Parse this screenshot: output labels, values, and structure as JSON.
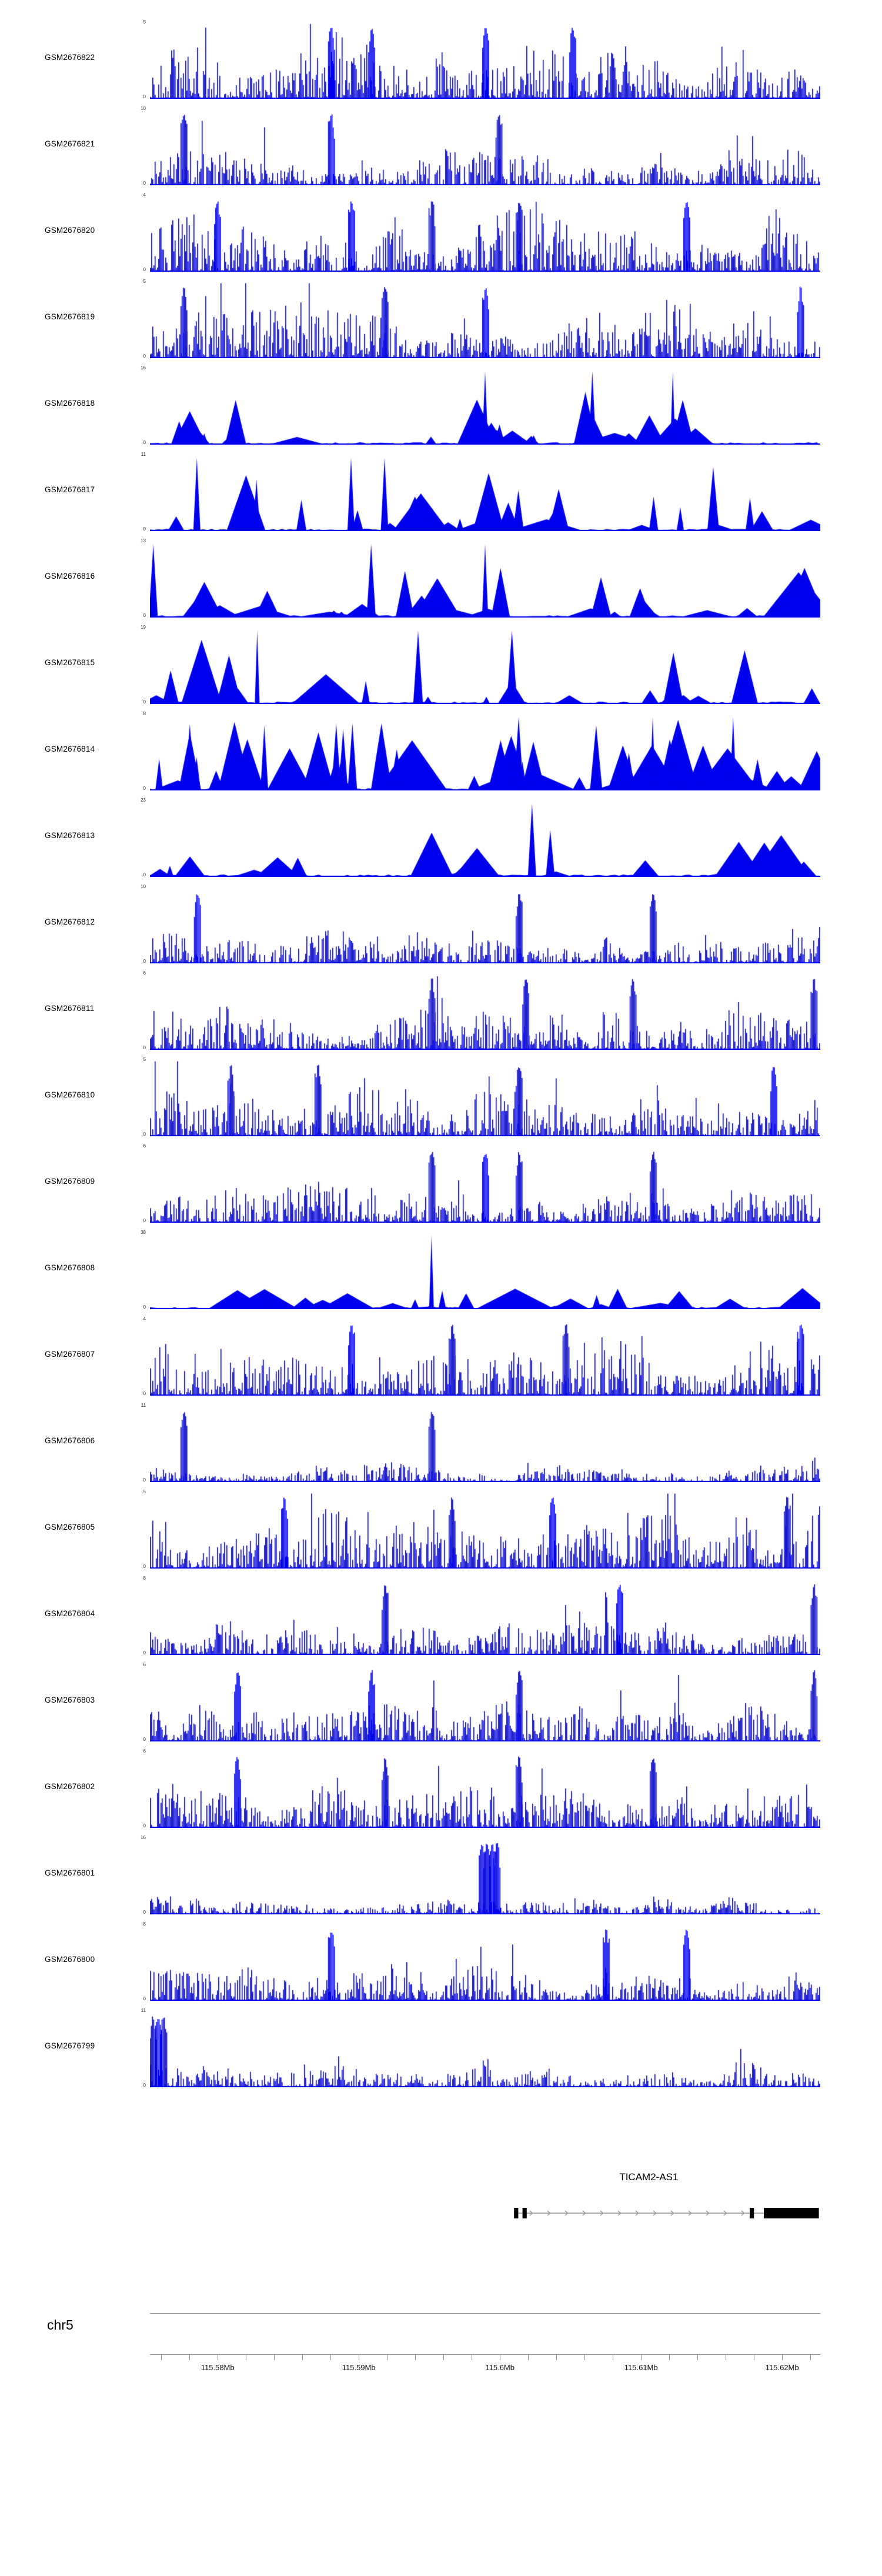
{
  "figure": {
    "background": "#ffffff",
    "signal_color": "#0000EE",
    "axis_color": "#8a8a8a",
    "exon_color": "#000000"
  },
  "chart_data": {
    "type": "area",
    "chart_kind": "genome-coverage-tracks",
    "region": {
      "chromosome": "chr5",
      "start_mb": 115.5752,
      "end_mb": 115.6227,
      "unit": "Mb"
    },
    "tracks": [
      {
        "label": "GSM2676822",
        "ylim": [
          0,
          5
        ],
        "style": "dense",
        "seed": 101,
        "amp": 0.8,
        "peaks": [
          0.27,
          0.33,
          0.5,
          0.63
        ]
      },
      {
        "label": "GSM2676821",
        "ylim": [
          0,
          10
        ],
        "style": "dense",
        "seed": 102,
        "amp": 0.55,
        "peaks": [
          0.05,
          0.27,
          0.52
        ]
      },
      {
        "label": "GSM2676820",
        "ylim": [
          0,
          4
        ],
        "style": "dense",
        "seed": 103,
        "amp": 0.95,
        "peaks": [
          0.1,
          0.3,
          0.42,
          0.55,
          0.8
        ]
      },
      {
        "label": "GSM2676819",
        "ylim": [
          0,
          5
        ],
        "style": "dense",
        "seed": 104,
        "amp": 0.8,
        "peaks": [
          0.05,
          0.35,
          0.5,
          0.97
        ]
      },
      {
        "label": "GSM2676818",
        "ylim": [
          0,
          16
        ],
        "style": "sparse",
        "seed": 105,
        "n": 26,
        "hscale": 0.7,
        "peaks": [
          0.5,
          0.66,
          0.78
        ]
      },
      {
        "label": "GSM2676817",
        "ylim": [
          0,
          11
        ],
        "style": "sparse",
        "seed": 106,
        "n": 30,
        "hscale": 0.8,
        "peaks": [
          0.07,
          0.3,
          0.35
        ]
      },
      {
        "label": "GSM2676816",
        "ylim": [
          0,
          13
        ],
        "style": "sparse",
        "seed": 107,
        "n": 30,
        "hscale": 0.75,
        "peaks": [
          0.005,
          0.33,
          0.5
        ]
      },
      {
        "label": "GSM2676815",
        "ylim": [
          0,
          19
        ],
        "style": "sparse",
        "seed": 108,
        "n": 24,
        "hscale": 0.8,
        "peaks": [
          0.16,
          0.4,
          0.54
        ]
      },
      {
        "label": "GSM2676814",
        "ylim": [
          0,
          8
        ],
        "style": "sparse",
        "seed": 109,
        "n": 70,
        "hscale": 0.85,
        "peaks": [
          0.55,
          0.75,
          0.87
        ]
      },
      {
        "label": "GSM2676813",
        "ylim": [
          0,
          23
        ],
        "style": "sparse",
        "seed": 110,
        "n": 22,
        "hscale": 0.6,
        "peaks": [
          0.57
        ]
      },
      {
        "label": "GSM2676812",
        "ylim": [
          0,
          10
        ],
        "style": "dense",
        "seed": 111,
        "amp": 0.5,
        "peaks": [
          0.07,
          0.55,
          0.75
        ]
      },
      {
        "label": "GSM2676811",
        "ylim": [
          0,
          6
        ],
        "style": "dense",
        "seed": 112,
        "amp": 0.6,
        "peaks": [
          0.42,
          0.56,
          0.72,
          0.99
        ]
      },
      {
        "label": "GSM2676810",
        "ylim": [
          0,
          5
        ],
        "style": "dense",
        "seed": 113,
        "amp": 0.85,
        "peaks": [
          0.12,
          0.25,
          0.55,
          0.93
        ]
      },
      {
        "label": "GSM2676809",
        "ylim": [
          0,
          6
        ],
        "style": "dense",
        "seed": 114,
        "amp": 0.6,
        "peaks": [
          0.42,
          0.5,
          0.55,
          0.75
        ]
      },
      {
        "label": "GSM2676808",
        "ylim": [
          0,
          38
        ],
        "style": "sparse",
        "seed": 115,
        "n": 34,
        "hscale": 0.25,
        "peaks": [
          0.42
        ]
      },
      {
        "label": "GSM2676807",
        "ylim": [
          0,
          4
        ],
        "style": "dense",
        "seed": 116,
        "amp": 0.9,
        "peaks": [
          0.3,
          0.45,
          0.62,
          0.97
        ]
      },
      {
        "label": "GSM2676806",
        "ylim": [
          0,
          11
        ],
        "style": "dense",
        "seed": 117,
        "amp": 0.3,
        "peaks": [
          0.05,
          0.42
        ]
      },
      {
        "label": "GSM2676805",
        "ylim": [
          0,
          5
        ],
        "style": "dense",
        "seed": 118,
        "amp": 0.85,
        "peaks": [
          0.2,
          0.45,
          0.6,
          0.95
        ]
      },
      {
        "label": "GSM2676804",
        "ylim": [
          0,
          8
        ],
        "style": "dense",
        "seed": 119,
        "amp": 0.55,
        "peaks": [
          0.35,
          0.7,
          0.99
        ]
      },
      {
        "label": "GSM2676803",
        "ylim": [
          0,
          6
        ],
        "style": "dense",
        "seed": 120,
        "amp": 0.6,
        "peaks": [
          0.13,
          0.33,
          0.55,
          0.99
        ]
      },
      {
        "label": "GSM2676802",
        "ylim": [
          0,
          6
        ],
        "style": "dense",
        "seed": 121,
        "amp": 0.6,
        "peaks": [
          0.13,
          0.35,
          0.55,
          0.75
        ]
      },
      {
        "label": "GSM2676801",
        "ylim": [
          0,
          16
        ],
        "style": "dense",
        "seed": 122,
        "amp": 0.25,
        "peaks": [
          0.495,
          0.502,
          0.51,
          0.517
        ]
      },
      {
        "label": "GSM2676800",
        "ylim": [
          0,
          8
        ],
        "style": "dense",
        "seed": 123,
        "amp": 0.5,
        "peaks": [
          0.27,
          0.68,
          0.8
        ]
      },
      {
        "label": "GSM2676799",
        "ylim": [
          0,
          11
        ],
        "style": "dense",
        "seed": 124,
        "amp": 0.35,
        "peaks": [
          0.004,
          0.012,
          0.02
        ]
      }
    ],
    "gene_track": {
      "label": "TICAM2-AS1",
      "strand": "+",
      "line_mb": [
        115.601,
        115.6226
      ],
      "exons_mb": [
        [
          115.601,
          115.6013
        ],
        [
          115.6016,
          115.6019
        ],
        [
          115.6177,
          115.618
        ],
        [
          115.6187,
          115.6226
        ]
      ]
    },
    "genome_axis": {
      "chromosome": "chr5",
      "major_ticks_mb": [
        115.58,
        115.59,
        115.6,
        115.61,
        115.62
      ],
      "tick_labels": [
        "115.58Mb",
        "115.59Mb",
        "115.6Mb",
        "115.61Mb",
        "115.62Mb"
      ],
      "minor_tick_interval_mb": 0.002
    }
  }
}
